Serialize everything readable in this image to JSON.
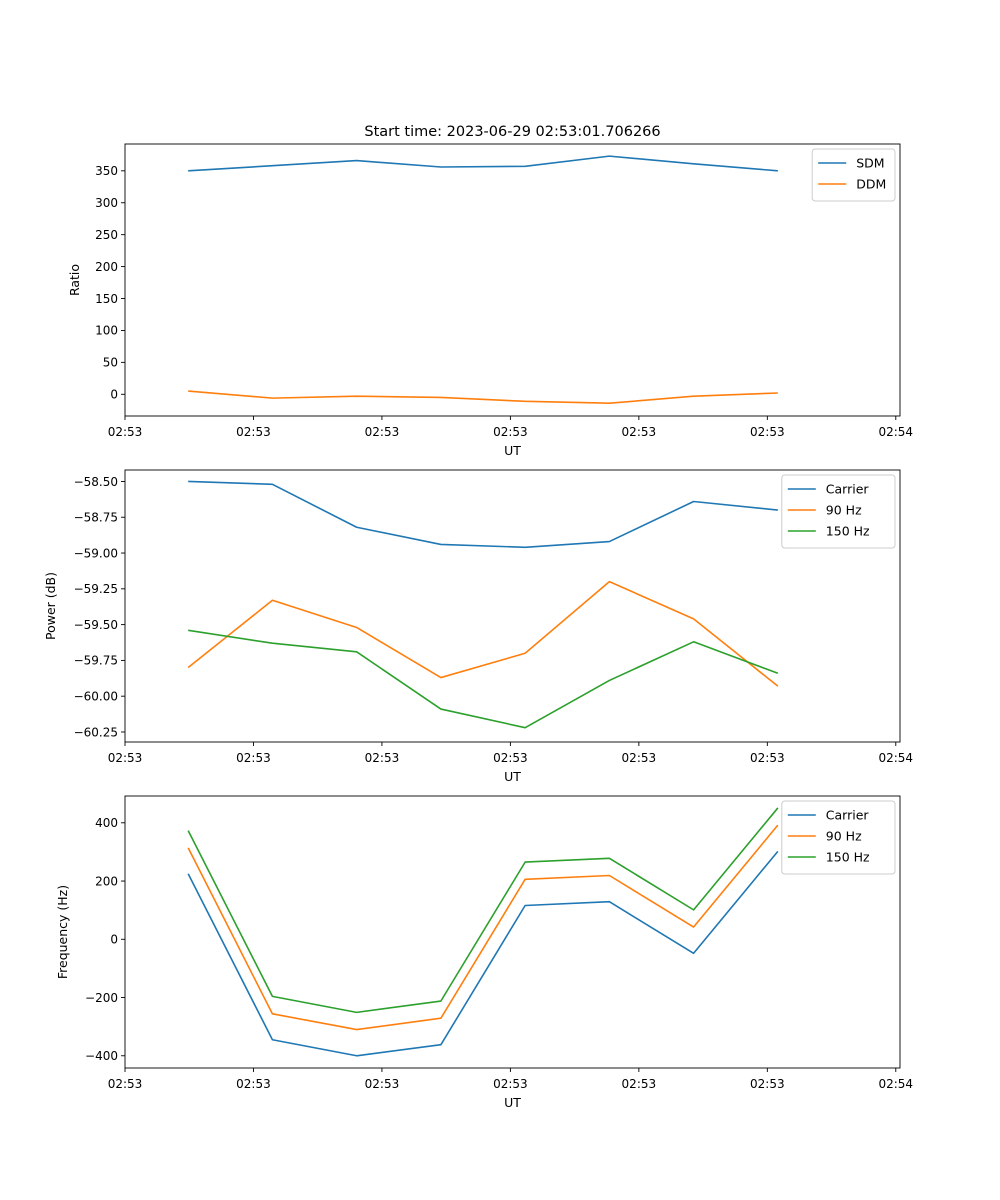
{
  "figure": {
    "title": "Start time: 2023-06-29 02:53:01.706266"
  },
  "chart_data": [
    {
      "type": "line",
      "title": "Start time: 2023-06-29 02:53:01.706266",
      "xlabel": "UT",
      "ylabel": "Ratio",
      "x": [
        0,
        1,
        2,
        3,
        4,
        5,
        6,
        7
      ],
      "xlim": [
        -0.75,
        8.45
      ],
      "xticks": [
        -0.75,
        0.775,
        2.3,
        3.825,
        5.35,
        6.875,
        8.4
      ],
      "xtick_labels": [
        "02:53",
        "02:53",
        "02:53",
        "02:53",
        "02:53",
        "02:53",
        "02:54"
      ],
      "ylim": [
        -34,
        392
      ],
      "yticks": [
        0,
        50,
        100,
        150,
        200,
        250,
        300,
        350
      ],
      "ytick_labels": [
        "0",
        "50",
        "100",
        "150",
        "200",
        "250",
        "300",
        "350"
      ],
      "legend": "top-right",
      "series": [
        {
          "name": "SDM",
          "color": "#1f77b4",
          "values": [
            350,
            358,
            366,
            356,
            357,
            373,
            361,
            350
          ]
        },
        {
          "name": "DDM",
          "color": "#ff7f0e",
          "values": [
            5,
            -6,
            -3,
            -5,
            -11,
            -14,
            -3,
            2
          ]
        }
      ]
    },
    {
      "type": "line",
      "title": "",
      "xlabel": "UT",
      "ylabel": "Power (dB)",
      "x": [
        0,
        1,
        2,
        3,
        4,
        5,
        6,
        7
      ],
      "xlim": [
        -0.75,
        8.45
      ],
      "xticks": [
        -0.75,
        0.775,
        2.3,
        3.825,
        5.35,
        6.875,
        8.4
      ],
      "xtick_labels": [
        "02:53",
        "02:53",
        "02:53",
        "02:53",
        "02:53",
        "02:53",
        "02:54"
      ],
      "ylim": [
        -60.32,
        -58.42
      ],
      "yticks": [
        -60.25,
        -60.0,
        -59.75,
        -59.5,
        -59.25,
        -59.0,
        -58.75,
        -58.5
      ],
      "ytick_labels": [
        "−60.25",
        "−60.00",
        "−59.75",
        "−59.50",
        "−59.25",
        "−59.00",
        "−58.75",
        "−58.50"
      ],
      "legend": "top-right",
      "series": [
        {
          "name": "Carrier",
          "color": "#1f77b4",
          "values": [
            -58.5,
            -58.52,
            -58.82,
            -58.94,
            -58.96,
            -58.92,
            -58.64,
            -58.7
          ]
        },
        {
          "name": "90 Hz",
          "color": "#ff7f0e",
          "values": [
            -59.8,
            -59.33,
            -59.52,
            -59.87,
            -59.7,
            -59.2,
            -59.46,
            -59.93
          ]
        },
        {
          "name": "150 Hz",
          "color": "#2ca02c",
          "values": [
            -59.54,
            -59.63,
            -59.69,
            -60.09,
            -60.22,
            -59.89,
            -59.62,
            -59.84
          ]
        }
      ]
    },
    {
      "type": "line",
      "title": "",
      "xlabel": "UT",
      "ylabel": "Frequency (Hz)",
      "x": [
        0,
        1,
        2,
        3,
        4,
        5,
        6,
        7
      ],
      "xlim": [
        -0.75,
        8.45
      ],
      "xticks": [
        -0.75,
        0.775,
        2.3,
        3.825,
        5.35,
        6.875,
        8.4
      ],
      "xtick_labels": [
        "02:53",
        "02:53",
        "02:53",
        "02:53",
        "02:53",
        "02:53",
        "02:54"
      ],
      "ylim": [
        -442,
        492
      ],
      "yticks": [
        -400,
        -200,
        0,
        200,
        400
      ],
      "ytick_labels": [
        "−400",
        "−200",
        "0",
        "200",
        "400"
      ],
      "legend": "top-right",
      "series": [
        {
          "name": "Carrier",
          "color": "#1f77b4",
          "values": [
            225,
            -345,
            -400,
            -362,
            116,
            129,
            -48,
            302
          ]
        },
        {
          "name": "90 Hz",
          "color": "#ff7f0e",
          "values": [
            314,
            -256,
            -310,
            -271,
            206,
            219,
            42,
            392
          ]
        },
        {
          "name": "150 Hz",
          "color": "#2ca02c",
          "values": [
            373,
            -196,
            -251,
            -212,
            265,
            278,
            101,
            451
          ]
        }
      ]
    }
  ]
}
